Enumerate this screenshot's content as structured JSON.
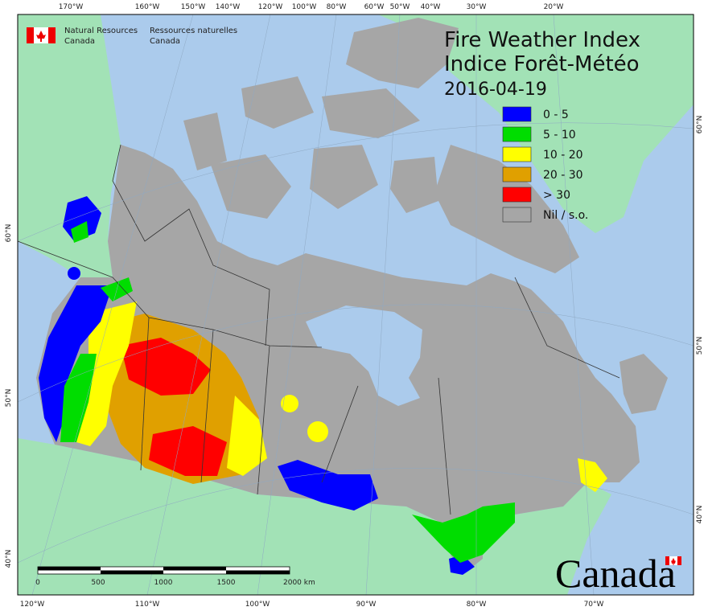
{
  "header": {
    "agency_en": [
      "Natural Resources",
      "Canada"
    ],
    "agency_fr": [
      "Ressources naturelles",
      "Canada"
    ],
    "title_en": "Fire Weather Index",
    "title_fr": "Indice Forêt-Météo",
    "date": "2016-04-19"
  },
  "legend": [
    {
      "label": "0 - 5",
      "color": "#0000ff"
    },
    {
      "label": "5 - 10",
      "color": "#00dd00"
    },
    {
      "label": "10 - 20",
      "color": "#ffff00"
    },
    {
      "label": "20 - 30",
      "color": "#e0a000"
    },
    {
      "label": "> 30",
      "color": "#ff0000"
    },
    {
      "label": "Nil / s.o.",
      "color": "#a6a6a6"
    }
  ],
  "graticule": {
    "top": [
      "170°W",
      "160°W",
      "150°W",
      "140°W",
      "120°W",
      "100°W",
      "80°W",
      "60°W",
      "50°W",
      "40°W",
      "30°W",
      "20°W"
    ],
    "bottom": [
      "120°W",
      "110°W",
      "100°W",
      "90°W",
      "80°W",
      "70°W"
    ],
    "left": [
      "60°N",
      "50°N",
      "40°N"
    ],
    "right": [
      "60°N",
      "50°N",
      "40°N"
    ]
  },
  "scale_bar": {
    "labels": [
      "0",
      "500",
      "1000",
      "1500",
      "2000 km"
    ]
  },
  "wordmark": "Canada"
}
